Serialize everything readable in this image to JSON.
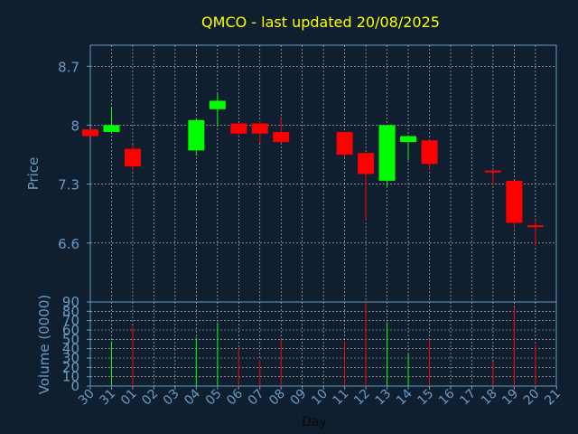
{
  "chart_data": [
    {
      "type": "candlestick",
      "title": "QMCO - last updated 20/08/2025",
      "ylabel": "Price",
      "ylim": [
        5.9,
        8.95
      ],
      "yticks": [
        "6.6",
        "7.3",
        "8",
        "8.7"
      ],
      "ytick_values": [
        6.6,
        7.3,
        8.0,
        8.7
      ],
      "grid": true,
      "colors": {
        "up": "#00ff00",
        "down": "#ff0000",
        "title": "#ffff00",
        "axis": "#6a9bc3",
        "background": "#0f1f30"
      },
      "candles": [
        {
          "day": "30",
          "open": 7.95,
          "high": 7.95,
          "low": 7.87,
          "close": 7.87
        },
        {
          "day": "31",
          "open": 7.92,
          "high": 8.22,
          "low": 7.92,
          "close": 8.0
        },
        {
          "day": "01",
          "open": 7.72,
          "high": 7.77,
          "low": 7.46,
          "close": 7.51
        },
        {
          "day": "02",
          "open": null,
          "high": null,
          "low": null,
          "close": null
        },
        {
          "day": "03",
          "open": null,
          "high": null,
          "low": null,
          "close": null
        },
        {
          "day": "04",
          "open": 7.7,
          "high": 8.07,
          "low": 7.64,
          "close": 8.06
        },
        {
          "day": "05",
          "open": 8.19,
          "high": 8.38,
          "low": 7.98,
          "close": 8.29
        },
        {
          "day": "06",
          "open": 8.02,
          "high": 8.02,
          "low": 7.87,
          "close": 7.9
        },
        {
          "day": "07",
          "open": 8.02,
          "high": 8.05,
          "low": 7.79,
          "close": 7.9
        },
        {
          "day": "08",
          "open": 7.92,
          "high": 8.08,
          "low": 7.79,
          "close": 7.8
        },
        {
          "day": "09",
          "open": null,
          "high": null,
          "low": null,
          "close": null
        },
        {
          "day": "10",
          "open": null,
          "high": null,
          "low": null,
          "close": null
        },
        {
          "day": "11",
          "open": 7.92,
          "high": 7.92,
          "low": 7.62,
          "close": 7.65
        },
        {
          "day": "12",
          "open": 7.67,
          "high": 7.67,
          "low": 6.88,
          "close": 7.42
        },
        {
          "day": "13",
          "open": 7.34,
          "high": 8.0,
          "low": 7.27,
          "close": 8.0
        },
        {
          "day": "14",
          "open": 7.8,
          "high": 7.88,
          "low": 7.58,
          "close": 7.87
        },
        {
          "day": "15",
          "open": 7.82,
          "high": 7.82,
          "low": 7.47,
          "close": 7.54
        },
        {
          "day": "16",
          "open": null,
          "high": null,
          "low": null,
          "close": null
        },
        {
          "day": "17",
          "open": null,
          "high": null,
          "low": null,
          "close": null
        },
        {
          "day": "18",
          "open": 7.45,
          "high": 7.47,
          "low": 7.29,
          "close": 7.44
        },
        {
          "day": "19",
          "open": 7.34,
          "high": 7.34,
          "low": 6.77,
          "close": 6.84
        },
        {
          "day": "20",
          "open": 6.8,
          "high": 6.88,
          "low": 6.56,
          "close": 6.78
        },
        {
          "day": "21",
          "open": null,
          "high": null,
          "low": null,
          "close": null
        }
      ]
    },
    {
      "type": "bar",
      "ylabel": "Volume (0000)",
      "xlabel": "Day",
      "categories": [
        "30",
        "31",
        "01",
        "02",
        "03",
        "04",
        "05",
        "06",
        "07",
        "08",
        "09",
        "10",
        "11",
        "12",
        "13",
        "14",
        "15",
        "16",
        "17",
        "18",
        "19",
        "20",
        "21"
      ],
      "values": [
        null,
        48,
        64,
        null,
        null,
        52,
        68,
        40,
        28,
        50,
        null,
        null,
        48,
        90,
        68,
        35,
        50,
        null,
        null,
        26,
        84,
        44,
        null
      ],
      "bar_direction": [
        "up",
        "up",
        "down",
        "up",
        "up",
        "up",
        "up",
        "down",
        "down",
        "down",
        "up",
        "up",
        "down",
        "down",
        "up",
        "up",
        "down",
        "up",
        "up",
        "down",
        "down",
        "down",
        "up"
      ],
      "ylim": [
        0,
        90
      ],
      "yticks": [
        "0",
        "10",
        "20",
        "30",
        "40",
        "50",
        "60",
        "70",
        "80",
        "90"
      ],
      "ytick_values": [
        0,
        10,
        20,
        30,
        40,
        50,
        60,
        70,
        80,
        90
      ],
      "grid": true
    }
  ]
}
